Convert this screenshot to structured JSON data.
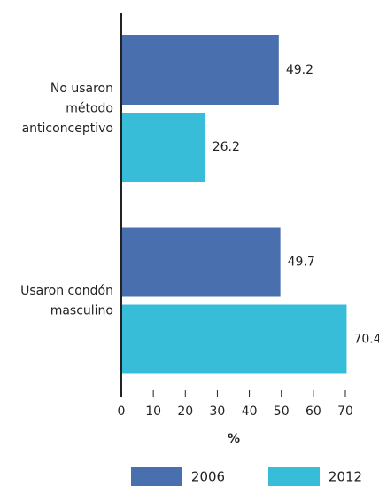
{
  "chart_data": {
    "type": "hbar",
    "categories": [
      "No usaron\nmétodo\nanticonceptivo",
      "Usaron condón\nmasculino"
    ],
    "series": [
      {
        "name": "2006",
        "color": "#4a6fae",
        "values": [
          49.2,
          49.7
        ]
      },
      {
        "name": "2012",
        "color": "#38bdd8",
        "values": [
          26.2,
          70.4
        ]
      }
    ],
    "xlabel": "%",
    "xlim": [
      0,
      70
    ],
    "xticks": [
      0,
      10,
      20,
      30,
      40,
      50,
      60,
      70
    ],
    "legend": "bottom"
  }
}
